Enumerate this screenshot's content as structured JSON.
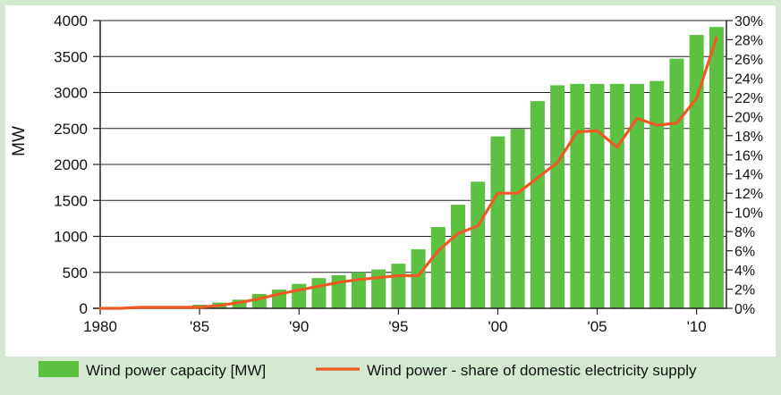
{
  "chart_data": {
    "type": "bar",
    "title": "",
    "xlabel": "",
    "ylabel": "MW",
    "ylim": [
      0,
      4000
    ],
    "y2lim": [
      0,
      30
    ],
    "y_ticks": [
      "0",
      "500",
      "1000",
      "1500",
      "2000",
      "2500",
      "3000",
      "3500",
      "4000"
    ],
    "y2_ticks": [
      "0%",
      "2%",
      "4%",
      "6%",
      "8%",
      "10%",
      "12%",
      "14%",
      "16%",
      "18%",
      "20%",
      "22%",
      "24%",
      "26%",
      "28%",
      "30%"
    ],
    "x_tick_labels": [
      {
        "year": 1980,
        "label": "1980"
      },
      {
        "year": 1985,
        "label": "'85"
      },
      {
        "year": 1990,
        "label": "'90"
      },
      {
        "year": 1995,
        "label": "'95"
      },
      {
        "year": 2000,
        "label": "'00"
      },
      {
        "year": 2005,
        "label": "'05"
      },
      {
        "year": 2010,
        "label": "'10"
      }
    ],
    "categories": [
      1980,
      1981,
      1982,
      1983,
      1984,
      1985,
      1986,
      1987,
      1988,
      1989,
      1990,
      1991,
      1992,
      1993,
      1994,
      1995,
      1996,
      1997,
      1998,
      1999,
      2000,
      2001,
      2002,
      2003,
      2004,
      2005,
      2006,
      2007,
      2008,
      2009,
      2010,
      2011
    ],
    "grid": true,
    "legend_placement": "bottom",
    "series": [
      {
        "name": "Wind power capacity [MW]",
        "kind": "bar",
        "axis": "left",
        "color": "#5cc140",
        "values": [
          3,
          7,
          12,
          20,
          30,
          50,
          80,
          120,
          200,
          260,
          340,
          420,
          460,
          500,
          540,
          620,
          820,
          1130,
          1440,
          1760,
          2390,
          2490,
          2880,
          3100,
          3120,
          3120,
          3120,
          3120,
          3160,
          3470,
          3800,
          3910
        ]
      },
      {
        "name": "Wind power - share of domestic electricity supply",
        "kind": "line",
        "axis": "right",
        "color": "#ee5a24",
        "values": [
          0.0,
          0.0,
          0.1,
          0.1,
          0.1,
          0.1,
          0.3,
          0.6,
          1.0,
          1.5,
          1.9,
          2.3,
          2.7,
          3.0,
          3.2,
          3.4,
          3.4,
          6.0,
          7.8,
          8.6,
          12.0,
          12.0,
          13.6,
          15.2,
          18.4,
          18.5,
          16.8,
          19.8,
          19.1,
          19.3,
          21.9,
          28.2
        ]
      }
    ]
  }
}
